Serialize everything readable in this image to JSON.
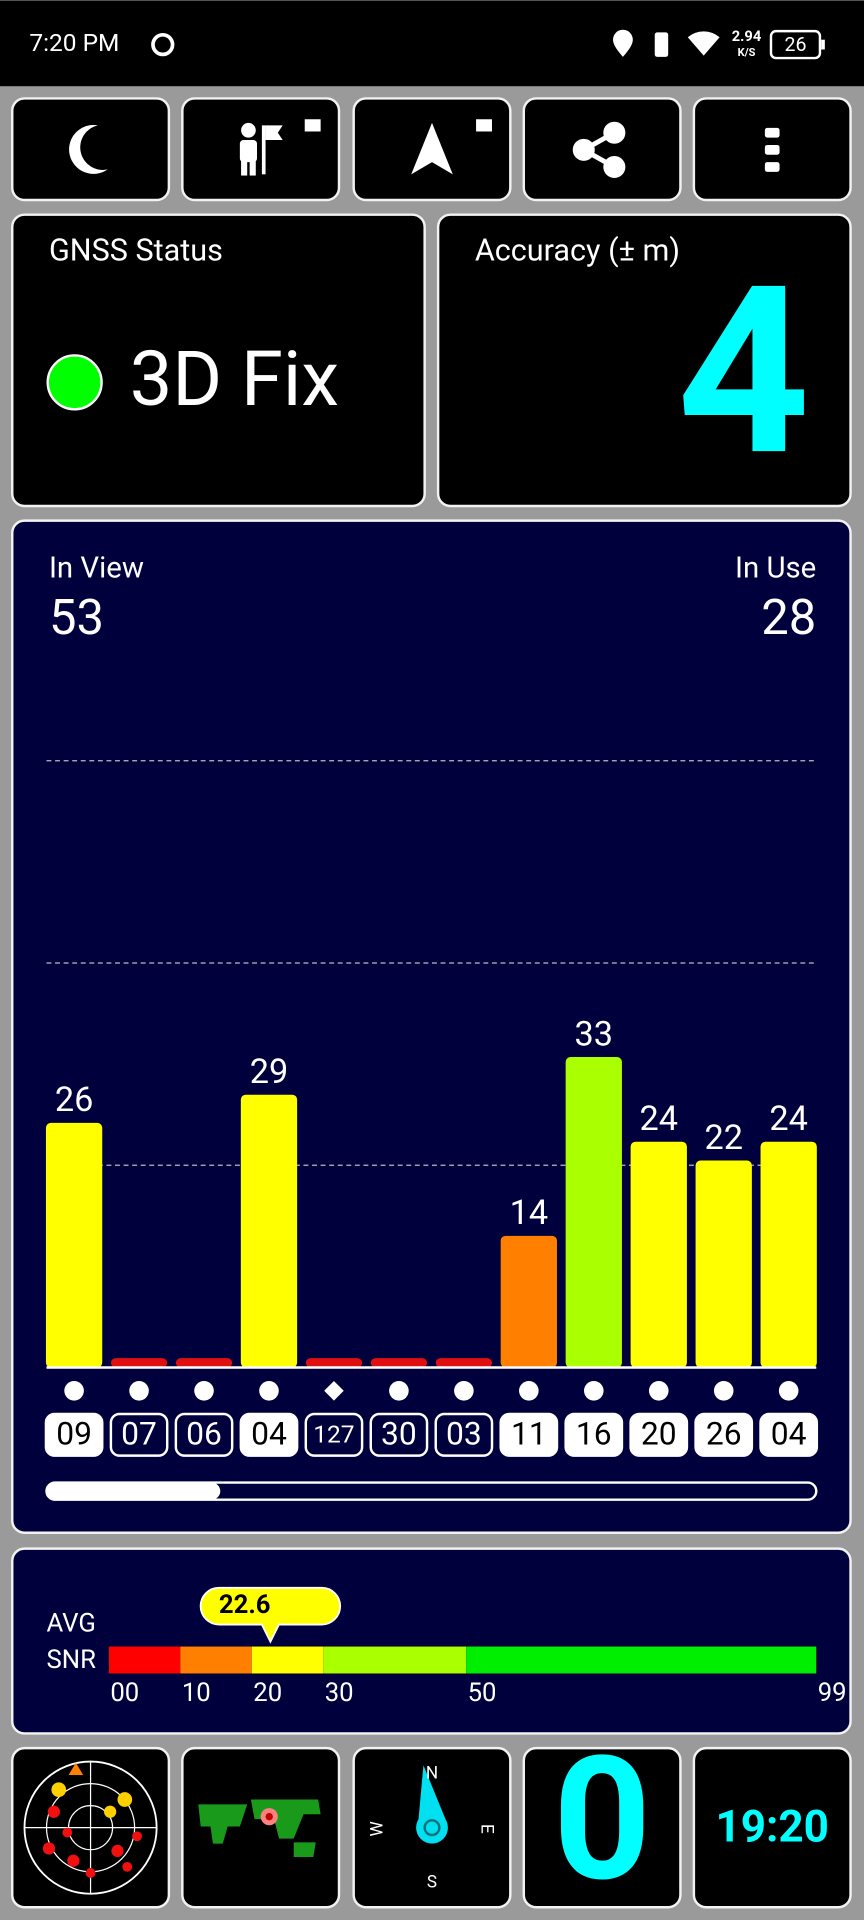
{
  "status_bar": {
    "time": "7:20 PM",
    "speed": "2.94",
    "speed_unit": "K/S",
    "battery": "26"
  },
  "gnss_status": {
    "title": "GNSS Status",
    "value": "3D Fix"
  },
  "accuracy": {
    "title": "Accuracy (± m)",
    "value": "4"
  },
  "chart_data": {
    "type": "bar",
    "in_view_label": "In View",
    "in_view": 53,
    "in_use_label": "In Use",
    "in_use": 28,
    "categories": [
      "09",
      "07",
      "06",
      "04",
      "127",
      "30",
      "03",
      "11",
      "16",
      "20",
      "26",
      "04"
    ],
    "values": [
      26,
      1,
      1,
      29,
      1,
      1,
      1,
      14,
      33,
      24,
      22,
      24
    ],
    "value_labels": [
      "26",
      null,
      null,
      "29",
      null,
      null,
      null,
      "14",
      "33",
      "24",
      "22",
      "24"
    ],
    "colors": [
      "#ffff00",
      "#e01010",
      "#e01010",
      "#ffff00",
      "#e01010",
      "#e01010",
      "#e01010",
      "#ff8000",
      "#aaff00",
      "#ffff00",
      "#ffff00",
      "#ffff00"
    ],
    "markers": [
      "circle",
      "circle",
      "circle",
      "circle",
      "diamond",
      "circle",
      "circle",
      "circle",
      "circle",
      "circle",
      "circle",
      "circle"
    ],
    "used": [
      true,
      false,
      false,
      true,
      false,
      false,
      false,
      true,
      true,
      true,
      true,
      true
    ],
    "ylim": [
      0,
      80
    ],
    "grid_lines": [
      21.5,
      43,
      64.5
    ]
  },
  "snr": {
    "label_top": "AVG",
    "label_bottom": "SNR",
    "avg": 22.6,
    "avg_label": "22.6",
    "xlim": [
      0,
      99
    ],
    "xticks": [
      {
        "value": 0,
        "label": "00"
      },
      10,
      20,
      30,
      50,
      99
    ],
    "segment_colors": [
      "#ff0000",
      "#ff8000",
      "#ffff00",
      "#aaff00",
      "#00ee00"
    ]
  },
  "bottom": {
    "compass_n": "N",
    "compass_e": "E",
    "compass_s": "S",
    "compass_w": "W",
    "counter": "0",
    "clock": "19:20"
  }
}
